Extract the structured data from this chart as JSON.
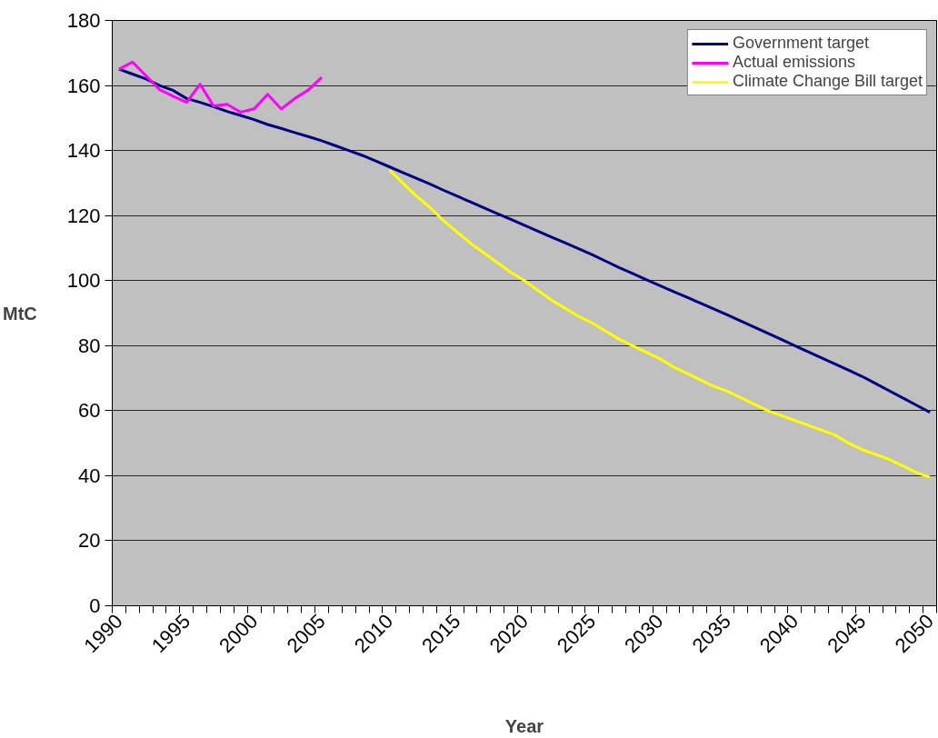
{
  "chart_data": {
    "type": "line",
    "xlabel": "Year",
    "ylabel": "MtC",
    "categories": [
      "1990",
      null,
      null,
      null,
      null,
      "1995",
      null,
      null,
      null,
      null,
      "2000",
      null,
      null,
      null,
      null,
      "2005",
      null,
      null,
      null,
      null,
      "2010",
      null,
      null,
      null,
      null,
      "2015",
      null,
      null,
      null,
      null,
      "2020",
      null,
      null,
      null,
      null,
      "2025",
      null,
      null,
      null,
      null,
      "2030",
      null,
      null,
      null,
      null,
      "2035",
      null,
      null,
      null,
      null,
      "2040",
      null,
      null,
      null,
      null,
      "2045",
      null,
      null,
      null,
      null,
      "2050"
    ],
    "series": [
      {
        "name": "Government target",
        "color": "#000080",
        "values": [
          165,
          163.5,
          162,
          160,
          158.5,
          156,
          154.8,
          153.5,
          152,
          150.8,
          149.5,
          148,
          146.8,
          145.5,
          144.3,
          143,
          141.5,
          140,
          138.5,
          136.8,
          135,
          133.2,
          131.5,
          129.7,
          127.8,
          126,
          124.2,
          122.4,
          120.6,
          118.8,
          117,
          115.2,
          113.4,
          111.6,
          109.8,
          108,
          106,
          104,
          102.2,
          100.3,
          98.5,
          96.7,
          94.9,
          93.1,
          91.3,
          89.5,
          87.6,
          85.7,
          83.8,
          81.9,
          80,
          78.1,
          76.2,
          74.3,
          72.4,
          70.5,
          68.3,
          66.1,
          63.9,
          61.7,
          59.5
        ]
      },
      {
        "name": "Actual emissions",
        "color": "#ff00ff",
        "values": [
          165,
          167.2,
          163,
          158.7,
          156.7,
          154.8,
          160.4,
          153.7,
          154.2,
          151.8,
          152.8,
          157.3,
          152.8,
          156,
          158.6,
          162.5,
          null,
          null,
          null,
          null,
          null,
          null,
          null,
          null,
          null,
          null,
          null,
          null,
          null,
          null,
          null,
          null,
          null,
          null,
          null,
          null,
          null,
          null,
          null,
          null,
          null,
          null,
          null,
          null,
          null,
          null,
          null,
          null,
          null,
          null,
          null,
          null,
          null,
          null,
          null,
          null,
          null,
          null,
          null,
          null,
          null
        ]
      },
      {
        "name": "Climate Change Bill target",
        "color": "#ffff00",
        "values": [
          null,
          null,
          null,
          null,
          null,
          null,
          null,
          null,
          null,
          null,
          null,
          null,
          null,
          null,
          null,
          null,
          null,
          null,
          null,
          null,
          134,
          130,
          126,
          122.5,
          118.5,
          115,
          111.5,
          108.5,
          105.5,
          102.5,
          100,
          97,
          94,
          91.5,
          89,
          87,
          84.5,
          82,
          80,
          78,
          76,
          73.5,
          71.5,
          69.5,
          67.5,
          66,
          64,
          62,
          60,
          58.5,
          57,
          55.5,
          54,
          52.5,
          50,
          48,
          46.5,
          45,
          43,
          41,
          39.5
        ]
      }
    ],
    "ylim": [
      0,
      180
    ],
    "yticks": [
      0,
      20,
      40,
      60,
      80,
      100,
      120,
      140,
      160,
      180
    ],
    "grid": "y",
    "legend": "top right"
  }
}
